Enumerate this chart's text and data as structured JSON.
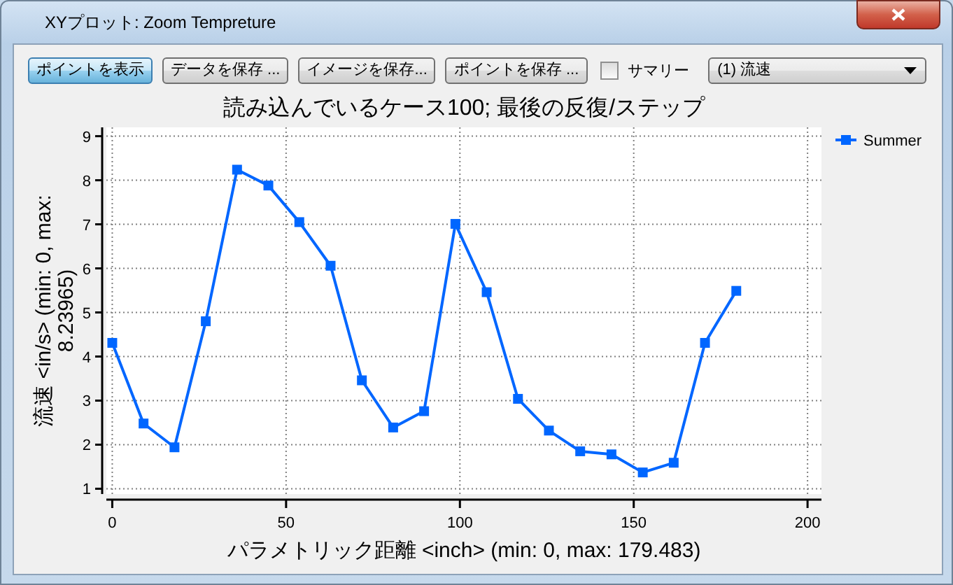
{
  "chart_data": {
    "type": "line",
    "title": "読み込んでいるケース100; 最後の反復/ステップ",
    "xlabel": "パラメトリック距離 <inch> (min: 0, max: 179.483)",
    "ylabel": "流速 <in/s> (min: 0, max: 8.23965)",
    "annotations": [
      "XYプロット: Zoom Tempreture",
      "ポイントを表示",
      "データを保存 ...",
      "イメージを保存...",
      "ポイントを保存 ...",
      "サマリー",
      "(1) 流速"
    ],
    "x": [
      0,
      9.0,
      17.9,
      26.9,
      35.9,
      44.9,
      53.8,
      62.8,
      71.8,
      80.8,
      89.7,
      98.7,
      107.7,
      116.7,
      125.6,
      134.6,
      143.6,
      152.6,
      161.5,
      170.5,
      179.5
    ],
    "series": [
      {
        "name": "Summer",
        "color": "#0066ff",
        "values": [
          4.31,
          2.48,
          1.94,
          4.8,
          8.24,
          7.88,
          7.05,
          6.06,
          3.46,
          2.39,
          2.76,
          7.01,
          5.46,
          3.04,
          2.32,
          1.85,
          1.78,
          1.37,
          1.59,
          4.31,
          5.49
        ]
      }
    ],
    "xlim": [
      -1.7,
      204
    ],
    "ylim": [
      0.88,
      9.2
    ],
    "xticks": [
      0,
      50,
      100,
      150,
      200
    ],
    "yticks": [
      1,
      2,
      3,
      4,
      5,
      6,
      7,
      8,
      9
    ],
    "grid": true,
    "legend": "top right",
    "marker": "square",
    "line_style": "solid"
  }
}
